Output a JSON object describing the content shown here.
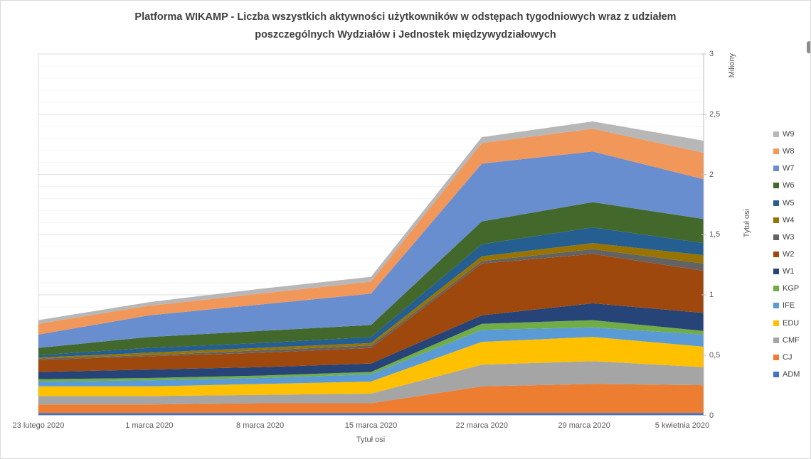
{
  "title": "Platforma WIKAMP - Liczba wszystkich aktywności użytkowników w odstępach tygodniowych wraz z udziałem poszczególnych Wydziałów i Jednostek międzywydziałowych",
  "chart_data": {
    "type": "area",
    "stacked": true,
    "values_unit": "millions_of_activities",
    "grid": true,
    "x_categories": [
      "23 lutego 2020",
      "1 marca 2020",
      "8 marca 2020",
      "15 marca 2020",
      "22 marca 2020",
      "29 marca 2020",
      "5 kwietnia 2020"
    ],
    "x_axis": {
      "title": "Tytuł osi"
    },
    "y_axis": {
      "title": "Tytuł osi",
      "unit_label": "Miliony",
      "min": 0,
      "max": 3,
      "major_step": 0.5,
      "minor_step": 0.1,
      "tick_labels": [
        "0",
        "0,5",
        "1",
        "1,5",
        "2",
        "2,5",
        "3"
      ],
      "labels_position": "right"
    },
    "legend": {
      "position": "right",
      "order_top_to_bottom": [
        "W9",
        "W8",
        "W7",
        "W6",
        "W5",
        "W4",
        "W3",
        "W2",
        "W1",
        "KGP",
        "IFE",
        "EDU",
        "CMF",
        "CJ",
        "ADM"
      ]
    },
    "series": [
      {
        "name": "ADM",
        "color": "#4472C4",
        "values": [
          0.02,
          0.02,
          0.02,
          0.02,
          0.02,
          0.02,
          0.02
        ]
      },
      {
        "name": "CJ",
        "color": "#ED7D31",
        "values": [
          0.07,
          0.07,
          0.08,
          0.08,
          0.22,
          0.24,
          0.23
        ]
      },
      {
        "name": "CMF",
        "color": "#A5A5A5",
        "values": [
          0.07,
          0.07,
          0.07,
          0.08,
          0.18,
          0.19,
          0.15
        ]
      },
      {
        "name": "EDU",
        "color": "#FFC000",
        "values": [
          0.08,
          0.08,
          0.09,
          0.1,
          0.19,
          0.2,
          0.17
        ]
      },
      {
        "name": "IFE",
        "color": "#5B9BD5",
        "values": [
          0.04,
          0.05,
          0.05,
          0.06,
          0.1,
          0.08,
          0.1
        ]
      },
      {
        "name": "KGP",
        "color": "#70AD47",
        "values": [
          0.02,
          0.02,
          0.02,
          0.02,
          0.05,
          0.06,
          0.03
        ]
      },
      {
        "name": "W1",
        "color": "#264478",
        "values": [
          0.06,
          0.07,
          0.07,
          0.07,
          0.07,
          0.14,
          0.15
        ]
      },
      {
        "name": "W2",
        "color": "#9E480E",
        "values": [
          0.1,
          0.11,
          0.12,
          0.13,
          0.43,
          0.41,
          0.35
        ]
      },
      {
        "name": "W3",
        "color": "#636363",
        "values": [
          0.01,
          0.01,
          0.02,
          0.02,
          0.02,
          0.04,
          0.06
        ]
      },
      {
        "name": "W4",
        "color": "#997300",
        "values": [
          0.01,
          0.02,
          0.02,
          0.02,
          0.04,
          0.05,
          0.07
        ]
      },
      {
        "name": "W5",
        "color": "#255E91",
        "values": [
          0.02,
          0.04,
          0.04,
          0.05,
          0.1,
          0.13,
          0.1
        ]
      },
      {
        "name": "W6",
        "color": "#43682B",
        "values": [
          0.06,
          0.09,
          0.1,
          0.1,
          0.19,
          0.21,
          0.2
        ]
      },
      {
        "name": "W7",
        "color": "#698ED0",
        "values": [
          0.11,
          0.18,
          0.22,
          0.26,
          0.48,
          0.42,
          0.33
        ]
      },
      {
        "name": "W8",
        "color": "#F1975A",
        "values": [
          0.09,
          0.08,
          0.09,
          0.1,
          0.17,
          0.19,
          0.22
        ]
      },
      {
        "name": "W9",
        "color": "#B7B7B7",
        "values": [
          0.03,
          0.03,
          0.04,
          0.04,
          0.05,
          0.06,
          0.1
        ]
      }
    ]
  }
}
